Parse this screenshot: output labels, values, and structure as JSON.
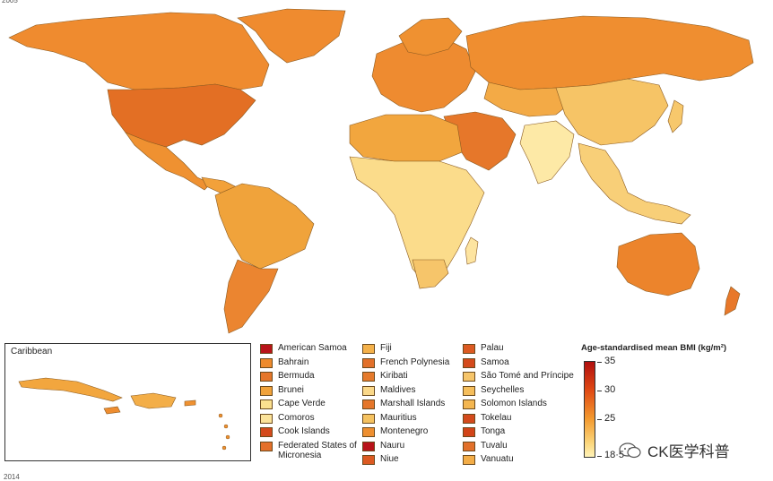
{
  "corner_top": "2005",
  "corner_bottom": "2014",
  "inset": {
    "title": "Caribbean"
  },
  "legend": {
    "col1": [
      {
        "label": "American Samoa",
        "color": "#b8141a"
      },
      {
        "label": "Bahrain",
        "color": "#ee8a2c"
      },
      {
        "label": "Bermuda",
        "color": "#e5762a"
      },
      {
        "label": "Brunei",
        "color": "#f0a23a"
      },
      {
        "label": "Cape Verde",
        "color": "#fbe08f"
      },
      {
        "label": "Comoros",
        "color": "#fbe39a"
      },
      {
        "label": "Cook Islands",
        "color": "#d44a1c"
      },
      {
        "label": "Federated States of Micronesia",
        "color": "#e4702a"
      }
    ],
    "col2": [
      {
        "label": "Fiji",
        "color": "#f4b14a"
      },
      {
        "label": "French Polynesia",
        "color": "#e2702a"
      },
      {
        "label": "Kiribati",
        "color": "#e57a2c"
      },
      {
        "label": "Maldives",
        "color": "#fad889"
      },
      {
        "label": "Marshall Islands",
        "color": "#e5762a"
      },
      {
        "label": "Mauritius",
        "color": "#f5c260"
      },
      {
        "label": "Montenegro",
        "color": "#ee8f30"
      },
      {
        "label": "Nauru",
        "color": "#b8141a"
      },
      {
        "label": "Niue",
        "color": "#dc5a22"
      }
    ],
    "col3": [
      {
        "label": "Palau",
        "color": "#dc5a22"
      },
      {
        "label": "Samoa",
        "color": "#d44a1c"
      },
      {
        "label": "São Tomé and Príncipe",
        "color": "#f6c56a"
      },
      {
        "label": "Seychelles",
        "color": "#f5be5c"
      },
      {
        "label": "Solomon Islands",
        "color": "#f4b650"
      },
      {
        "label": "Tokelau",
        "color": "#d44a1c"
      },
      {
        "label": "Tonga",
        "color": "#d24418"
      },
      {
        "label": "Tuvalu",
        "color": "#e2702a"
      },
      {
        "label": "Vanuatu",
        "color": "#f3ad48"
      }
    ]
  },
  "scale": {
    "title": "Age-standardised mean BMI (kg/m²)",
    "ticks": [
      "35",
      "30",
      "25",
      "18·5"
    ],
    "range": [
      18.5,
      35
    ]
  },
  "watermark": "CK医学科普"
}
